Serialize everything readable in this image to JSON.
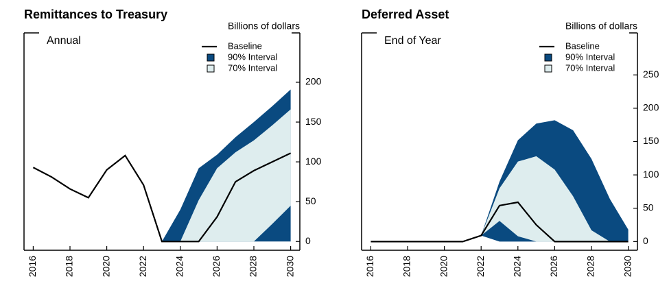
{
  "chart_data": [
    {
      "type": "line-band",
      "title": "Remittances to Treasury",
      "subtitle": "Annual",
      "y_label": "Billions of dollars",
      "x": [
        2016,
        2017,
        2018,
        2019,
        2020,
        2021,
        2022,
        2023,
        2024,
        2025,
        2026,
        2027,
        2028,
        2029,
        2030
      ],
      "xlim": [
        2015.5,
        2030.5
      ],
      "xticks": [
        2016,
        2018,
        2020,
        2022,
        2024,
        2026,
        2028,
        2030
      ],
      "ylim": [
        -11,
        262
      ],
      "yticks": [
        0,
        50,
        100,
        150,
        200
      ],
      "series": [
        {
          "name": "Baseline",
          "color": "#000000",
          "values": [
            93,
            81,
            66,
            55,
            90,
            108,
            71,
            0,
            0,
            0,
            31,
            75,
            89,
            100,
            111
          ]
        },
        {
          "name": "90% Interval",
          "color": "#0a4a80",
          "upper": [
            null,
            null,
            null,
            null,
            null,
            null,
            null,
            0,
            40,
            92,
            109,
            131,
            150,
            170,
            191
          ],
          "lower": [
            null,
            null,
            null,
            null,
            null,
            null,
            null,
            0,
            0,
            0,
            0,
            0,
            0,
            0,
            0
          ]
        },
        {
          "name": "70% Interval",
          "color": "#deedee",
          "upper": [
            null,
            null,
            null,
            null,
            null,
            null,
            null,
            0,
            0,
            52,
            92,
            112,
            127,
            146,
            166
          ],
          "lower": [
            null,
            null,
            null,
            null,
            null,
            null,
            null,
            0,
            0,
            0,
            0,
            0,
            0,
            22,
            45
          ]
        }
      ]
    },
    {
      "type": "line-band",
      "title": "Deferred Asset",
      "subtitle": "End of Year",
      "y_label": "Billions of dollars",
      "x": [
        2016,
        2017,
        2018,
        2019,
        2020,
        2021,
        2022,
        2023,
        2024,
        2025,
        2026,
        2027,
        2028,
        2029,
        2030
      ],
      "xlim": [
        2015.5,
        2030.5
      ],
      "xticks": [
        2016,
        2018,
        2020,
        2022,
        2024,
        2026,
        2028,
        2030
      ],
      "ylim": [
        -13,
        313
      ],
      "yticks": [
        0,
        50,
        100,
        150,
        200,
        250
      ],
      "series": [
        {
          "name": "Baseline",
          "color": "#000000",
          "values": [
            0,
            0,
            0,
            0,
            0,
            0,
            9,
            54,
            59,
            25,
            0,
            0,
            0,
            0,
            0
          ]
        },
        {
          "name": "90% Interval",
          "color": "#0a4a80",
          "upper": [
            null,
            null,
            null,
            null,
            null,
            0,
            9,
            90,
            152,
            177,
            182,
            167,
            124,
            64,
            18
          ],
          "lower": [
            null,
            null,
            null,
            null,
            null,
            0,
            9,
            0,
            0,
            0,
            0,
            0,
            0,
            0,
            0
          ]
        },
        {
          "name": "70% Interval",
          "color": "#deedee",
          "upper": [
            null,
            null,
            null,
            null,
            null,
            0,
            9,
            80,
            120,
            128,
            108,
            68,
            17,
            0,
            0
          ],
          "lower": [
            null,
            null,
            null,
            null,
            null,
            0,
            9,
            31,
            8,
            0,
            0,
            0,
            0,
            0,
            0
          ]
        }
      ]
    }
  ]
}
